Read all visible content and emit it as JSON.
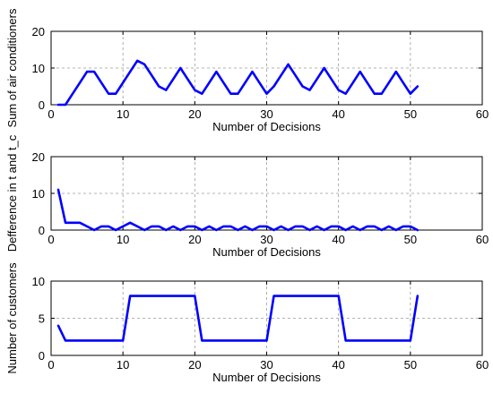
{
  "chart_data": [
    {
      "type": "line",
      "xlabel": "Number of Decisions",
      "ylabel": "Sum of air conditioners",
      "xlim": [
        0,
        60
      ],
      "ylim": [
        0,
        20
      ],
      "xticks": [
        0,
        10,
        20,
        30,
        40,
        50,
        60
      ],
      "yticks": [
        0,
        10,
        20
      ],
      "grid": true,
      "color": "#0000ff",
      "x": [
        1,
        2,
        3,
        4,
        5,
        6,
        7,
        8,
        9,
        10,
        11,
        12,
        13,
        14,
        15,
        16,
        17,
        18,
        19,
        20,
        21,
        22,
        23,
        24,
        25,
        26,
        27,
        28,
        29,
        30,
        31,
        32,
        33,
        34,
        35,
        36,
        37,
        38,
        39,
        40,
        41,
        42,
        43,
        44,
        45,
        46,
        47,
        48,
        49,
        50,
        51
      ],
      "values": [
        0,
        0,
        3,
        6,
        9,
        9,
        6,
        3,
        3,
        6,
        9,
        12,
        11,
        8,
        5,
        4,
        7,
        10,
        7,
        4,
        3,
        6,
        9,
        6,
        3,
        3,
        6,
        9,
        6,
        3,
        5,
        8,
        11,
        8,
        5,
        4,
        7,
        10,
        7,
        4,
        3,
        6,
        9,
        6,
        3,
        3,
        6,
        9,
        6,
        3,
        5
      ]
    },
    {
      "type": "line",
      "xlabel": "Number of Decisions",
      "ylabel": "Defference in t and t_c",
      "xlim": [
        0,
        60
      ],
      "ylim": [
        0,
        20
      ],
      "xticks": [
        0,
        10,
        20,
        30,
        40,
        50,
        60
      ],
      "yticks": [
        0,
        10,
        20
      ],
      "grid": true,
      "color": "#0000ff",
      "x": [
        1,
        2,
        3,
        4,
        5,
        6,
        7,
        8,
        9,
        10,
        11,
        12,
        13,
        14,
        15,
        16,
        17,
        18,
        19,
        20,
        21,
        22,
        23,
        24,
        25,
        26,
        27,
        28,
        29,
        30,
        31,
        32,
        33,
        34,
        35,
        36,
        37,
        38,
        39,
        40,
        41,
        42,
        43,
        44,
        45,
        46,
        47,
        48,
        49,
        50,
        51
      ],
      "values": [
        11,
        2,
        2,
        2,
        1,
        0,
        1,
        1,
        0,
        1,
        2,
        1,
        0,
        1,
        1,
        0,
        1,
        0,
        1,
        1,
        0,
        1,
        0,
        1,
        1,
        0,
        1,
        0,
        1,
        1,
        0,
        1,
        0,
        1,
        1,
        0,
        1,
        0,
        1,
        1,
        0,
        1,
        0,
        1,
        1,
        0,
        1,
        0,
        1,
        1,
        0
      ]
    },
    {
      "type": "line",
      "xlabel": "Number of Decisions",
      "ylabel": "Number of customers",
      "xlim": [
        0,
        60
      ],
      "ylim": [
        0,
        10
      ],
      "xticks": [
        0,
        10,
        20,
        30,
        40,
        50,
        60
      ],
      "yticks": [
        0,
        5,
        10
      ],
      "grid": true,
      "color": "#0000ff",
      "x": [
        1,
        2,
        3,
        4,
        5,
        6,
        7,
        8,
        9,
        10,
        11,
        12,
        13,
        14,
        15,
        16,
        17,
        18,
        19,
        20,
        21,
        22,
        23,
        24,
        25,
        26,
        27,
        28,
        29,
        30,
        31,
        32,
        33,
        34,
        35,
        36,
        37,
        38,
        39,
        40,
        41,
        42,
        43,
        44,
        45,
        46,
        47,
        48,
        49,
        50,
        51
      ],
      "values": [
        4,
        2,
        2,
        2,
        2,
        2,
        2,
        2,
        2,
        2,
        8,
        8,
        8,
        8,
        8,
        8,
        8,
        8,
        8,
        8,
        2,
        2,
        2,
        2,
        2,
        2,
        2,
        2,
        2,
        2,
        8,
        8,
        8,
        8,
        8,
        8,
        8,
        8,
        8,
        8,
        2,
        2,
        2,
        2,
        2,
        2,
        2,
        2,
        2,
        2,
        8
      ]
    }
  ]
}
